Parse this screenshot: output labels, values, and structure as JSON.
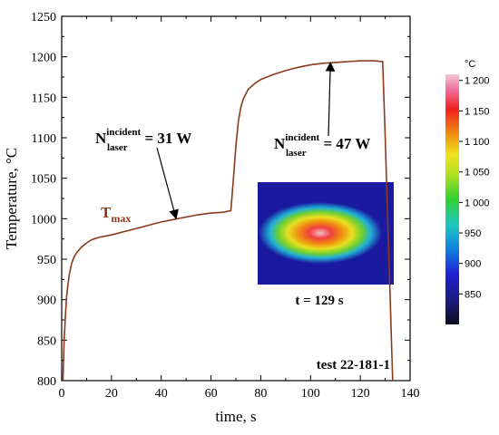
{
  "chart_data": {
    "type": "line",
    "xlabel": "time, s",
    "ylabel": "Temperature,  °C",
    "xlim": [
      0,
      140
    ],
    "ylim": [
      800,
      1250
    ],
    "x_ticks": [
      "0",
      "20",
      "40",
      "60",
      "80",
      "100",
      "120",
      "140"
    ],
    "y_ticks": [
      "800",
      "850",
      "900",
      "950",
      "1000",
      "1050",
      "1100",
      "1150",
      "1200",
      "1250"
    ],
    "grid": false,
    "series": [
      {
        "name": "Tmax",
        "color": "#8b3a1a",
        "points": [
          [
            0.5,
            800
          ],
          [
            1,
            850
          ],
          [
            1.5,
            880
          ],
          [
            2,
            905
          ],
          [
            3,
            930
          ],
          [
            4,
            945
          ],
          [
            5,
            953
          ],
          [
            6,
            958
          ],
          [
            8,
            965
          ],
          [
            10,
            970
          ],
          [
            12,
            974
          ],
          [
            15,
            977
          ],
          [
            20,
            980
          ],
          [
            25,
            984
          ],
          [
            30,
            988
          ],
          [
            35,
            992
          ],
          [
            40,
            996
          ],
          [
            45,
            999
          ],
          [
            50,
            1002
          ],
          [
            55,
            1005
          ],
          [
            60,
            1007
          ],
          [
            65,
            1008
          ],
          [
            68,
            1010
          ],
          [
            69,
            1050
          ],
          [
            70,
            1090
          ],
          [
            71,
            1120
          ],
          [
            72,
            1138
          ],
          [
            73,
            1148
          ],
          [
            75,
            1160
          ],
          [
            78,
            1168
          ],
          [
            80,
            1172
          ],
          [
            85,
            1178
          ],
          [
            90,
            1183
          ],
          [
            95,
            1187
          ],
          [
            100,
            1190
          ],
          [
            105,
            1192
          ],
          [
            110,
            1193
          ],
          [
            115,
            1194
          ],
          [
            120,
            1195
          ],
          [
            125,
            1195
          ],
          [
            129,
            1194
          ],
          [
            130,
            1100
          ],
          [
            131,
            1000
          ],
          [
            132,
            900
          ],
          [
            133,
            800
          ]
        ]
      }
    ],
    "annotations": [
      {
        "text_main": "N",
        "text_sub": "laser",
        "text_sup": "incident",
        "text_value": " = 31 W",
        "arrow_to": [
          46,
          999
        ]
      },
      {
        "text_main": "N",
        "text_sub": "laser",
        "text_sup": "incident",
        "text_value": " = 47 W",
        "arrow_to": [
          108,
          1194
        ]
      }
    ],
    "series_label": {
      "main": "T",
      "sub": "max",
      "color": "#8b3a1a"
    },
    "test_label": "test 22-181-1",
    "inset": {
      "caption": "t = 129 s",
      "background": "#1a1aa0"
    },
    "colorbar": {
      "unit": "°C",
      "min": 800,
      "max": 1210,
      "labels": [
        "1 200",
        "1 150",
        "1 100",
        "1 050",
        "1 000",
        "950",
        "900",
        "850"
      ],
      "label_values": [
        1200,
        1150,
        1100,
        1050,
        1000,
        950,
        900,
        850
      ]
    }
  }
}
